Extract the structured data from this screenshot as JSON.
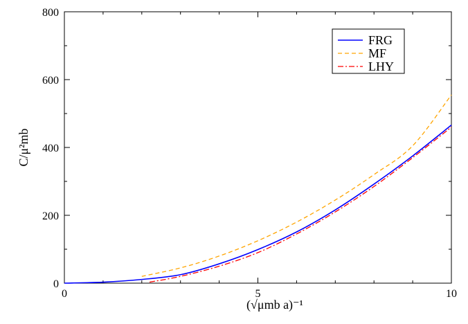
{
  "chart_data": {
    "type": "line",
    "title": "",
    "xlabel": "(√μmb a)⁻¹",
    "ylabel": "C/μ²mb",
    "xlim": [
      0,
      10
    ],
    "ylim": [
      0,
      800
    ],
    "x_ticks": [
      0,
      5,
      10
    ],
    "y_ticks": [
      0,
      200,
      400,
      600,
      800
    ],
    "x_tick_labels": [
      "0",
      "5",
      "10"
    ],
    "y_tick_labels": [
      "0",
      "200",
      "400",
      "600",
      "800"
    ],
    "grid": false,
    "legend_placement": "top-right",
    "series": [
      {
        "name": "FRG",
        "color": "#0000ff",
        "style": "solid",
        "x": [
          0,
          1,
          2,
          3,
          4,
          5,
          6,
          7,
          8,
          9,
          10
        ],
        "y": [
          0,
          3,
          11,
          25,
          57,
          99,
          151,
          216,
          292,
          375,
          466
        ]
      },
      {
        "name": "MF",
        "color": "#ffa500",
        "style": "dashed",
        "x": [
          2,
          3,
          4,
          5,
          6,
          7,
          8,
          9,
          10
        ],
        "y": [
          20,
          45,
          80,
          125,
          180,
          245,
          320,
          405,
          555
        ]
      },
      {
        "name": "LHY",
        "color": "#ff0000",
        "style": "dashdot",
        "x": [
          2.2,
          3,
          4,
          5,
          6,
          7,
          8,
          9,
          10
        ],
        "y": [
          3,
          20,
          50,
          90,
          145,
          210,
          285,
          370,
          460
        ]
      }
    ]
  }
}
